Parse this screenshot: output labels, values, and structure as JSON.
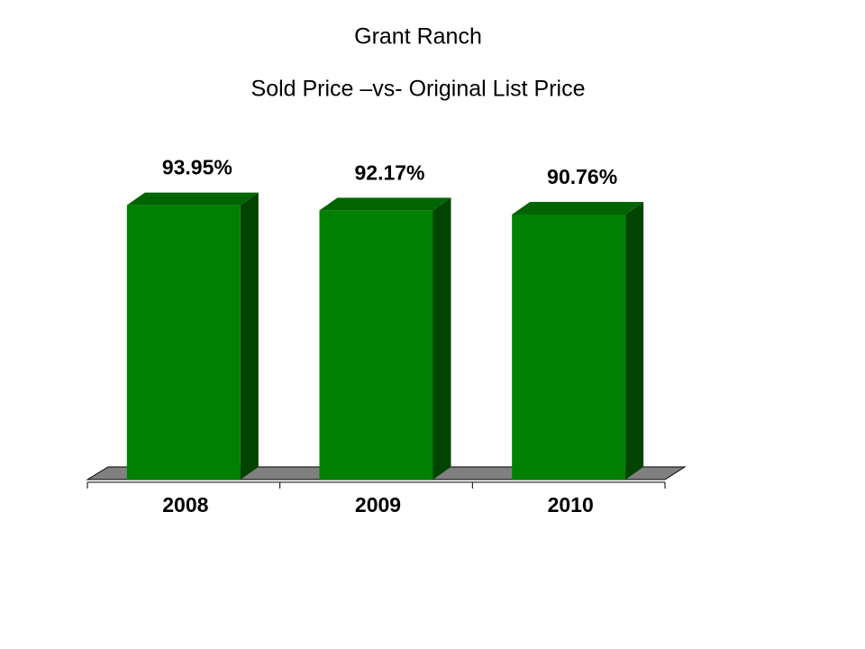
{
  "chart_data": {
    "type": "bar3d",
    "title": "Grant Ranch",
    "subtitle": "Sold Price –vs- Original List Price",
    "categories": [
      "2008",
      "2009",
      "2010"
    ],
    "values": [
      93.95,
      92.17,
      90.76
    ],
    "value_labels": [
      "93.95%",
      "92.17%",
      "90.76%"
    ],
    "color": "#008000",
    "ylim": [
      0,
      100
    ],
    "grid": false
  }
}
